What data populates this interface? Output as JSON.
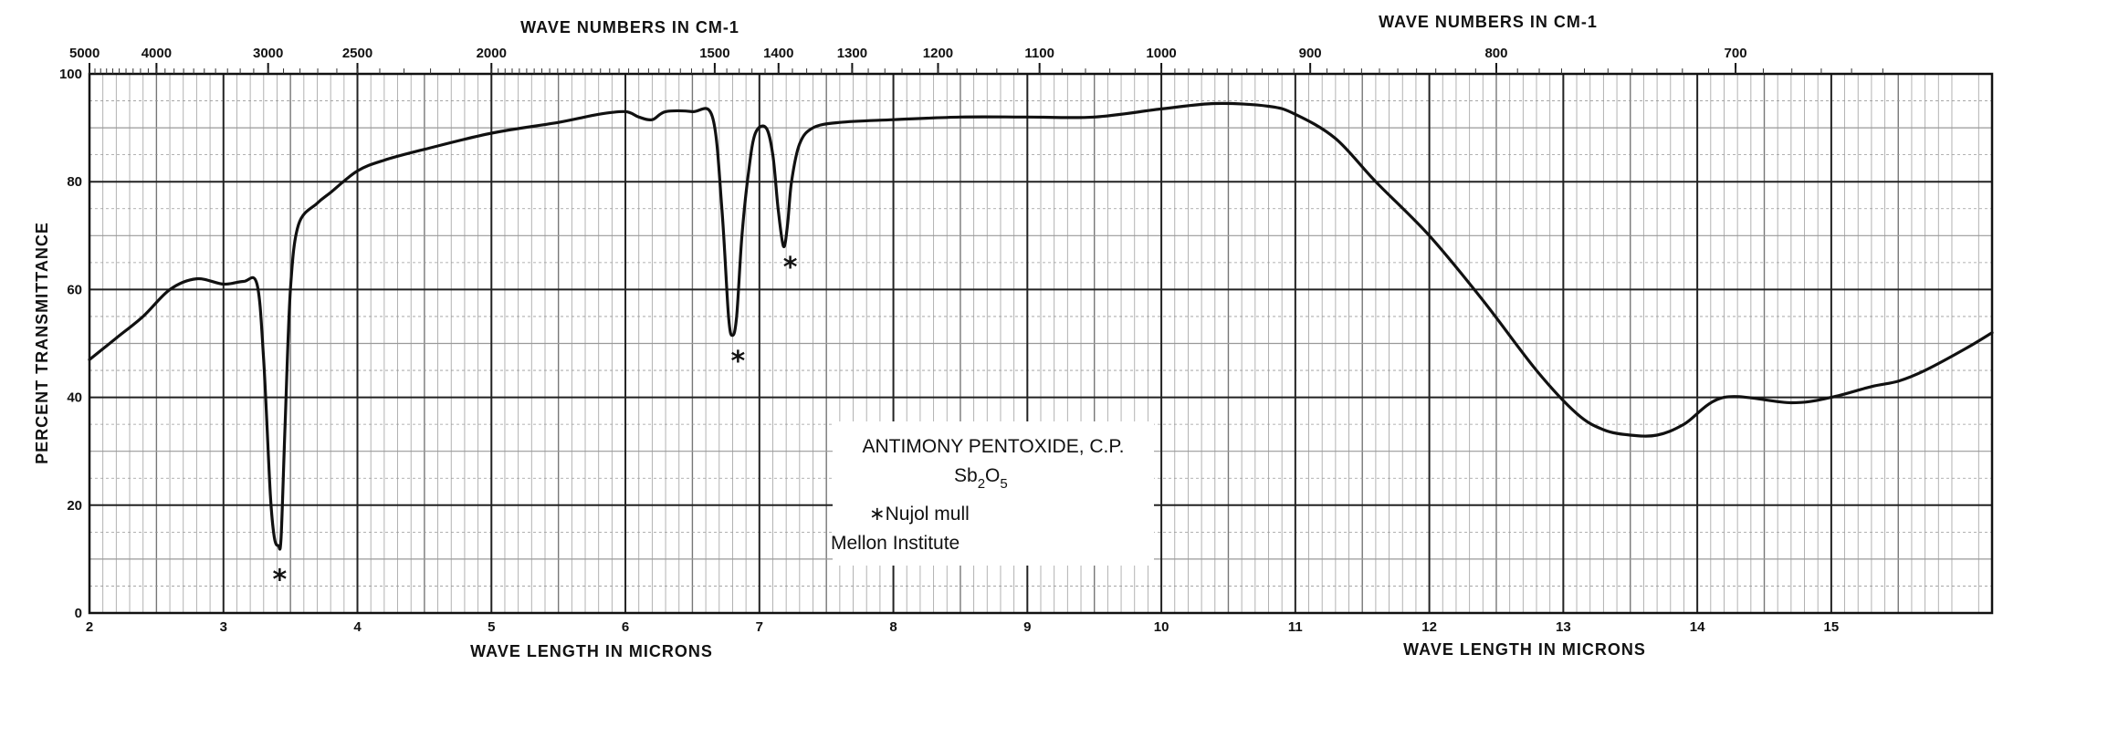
{
  "chart_data": {
    "type": "line",
    "xlabel": "WAVE LENGTH IN MICRONS",
    "xlabel_right": "WAVE LENGTH IN MICRONS",
    "top_axis_label": "WAVE NUMBERS IN CM-1",
    "top_axis_label_right": "WAVE NUMBERS IN CM-1",
    "ylabel": "PERCENT TRANSMITTANCE",
    "xlim": [
      2,
      16.2
    ],
    "ylim": [
      0,
      100
    ],
    "grid": true,
    "x_ticks": [
      2,
      3,
      4,
      5,
      6,
      7,
      8,
      9,
      10,
      11,
      12,
      13,
      14,
      15
    ],
    "x_tick_labels": [
      "2",
      "3",
      "4",
      "5",
      "6",
      "7",
      "8",
      "9",
      "10",
      "11",
      "12",
      "13",
      "14",
      "15"
    ],
    "y_ticks": [
      0,
      20,
      40,
      60,
      80,
      100
    ],
    "y_tick_labels": [
      "0",
      "20",
      "40",
      "60",
      "80",
      "100"
    ],
    "wavenumber_ticks": [
      5000,
      4000,
      3000,
      2500,
      2000,
      1500,
      1400,
      1300,
      1200,
      1100,
      1000,
      900,
      800,
      700
    ],
    "wavenumber_tick_labels": [
      "5000",
      "4000",
      "3000",
      "2500",
      "2000",
      "1500",
      "1400",
      "1300",
      "1200",
      "1100",
      "1000",
      "900",
      "800",
      "700"
    ],
    "series": [
      {
        "x": [
          2.0,
          2.2,
          2.4,
          2.6,
          2.8,
          3.0,
          3.15,
          3.25,
          3.3,
          3.35,
          3.38,
          3.41,
          3.43,
          3.46,
          3.5,
          3.56,
          3.7,
          3.8,
          4.0,
          4.2,
          4.5,
          5.0,
          5.5,
          5.8,
          6.0,
          6.1,
          6.2,
          6.3,
          6.5,
          6.65,
          6.72,
          6.77,
          6.8,
          6.83,
          6.87,
          6.92,
          6.97,
          7.05,
          7.1,
          7.14,
          7.18,
          7.21,
          7.24,
          7.3,
          7.4,
          7.6,
          8.0,
          8.5,
          9.0,
          9.5,
          10.0,
          10.4,
          10.8,
          11.0,
          11.3,
          11.6,
          12.0,
          12.4,
          12.8,
          13.1,
          13.3,
          13.5,
          13.7,
          13.9,
          14.2,
          14.7,
          15.0,
          15.3,
          15.5,
          15.7,
          16.0,
          16.2
        ],
        "y": [
          47,
          51,
          55,
          60,
          62,
          61,
          61.5,
          61,
          47,
          22,
          14,
          12.5,
          14,
          35,
          60,
          72,
          76,
          78,
          82,
          84,
          86,
          89,
          91,
          92.5,
          93,
          92,
          91.5,
          93,
          93,
          92,
          75,
          55,
          51.5,
          55,
          70,
          82,
          89,
          90,
          85,
          75,
          68,
          72,
          80,
          87,
          90,
          91,
          91.5,
          92,
          92,
          92,
          93.5,
          94.5,
          94,
          92.5,
          88,
          80,
          70,
          58,
          45,
          37,
          34,
          33,
          33,
          35,
          40,
          39,
          40,
          42,
          43,
          45,
          49,
          52
        ]
      }
    ],
    "markers": [
      {
        "symbol": "*",
        "x": 3.42,
        "y": 6.5
      },
      {
        "symbol": "*",
        "x": 6.84,
        "y": 47
      },
      {
        "symbol": "*",
        "x": 7.23,
        "y": 64.5
      }
    ],
    "annotation": {
      "line1": "ANTIMONY PENTOXIDE, C.P.",
      "formula_main": "Sb",
      "formula_sub1": "2",
      "formula_mid": "O",
      "formula_sub2": "5",
      "line3": "∗Nujol mull",
      "line4": "Mellon Institute"
    }
  }
}
